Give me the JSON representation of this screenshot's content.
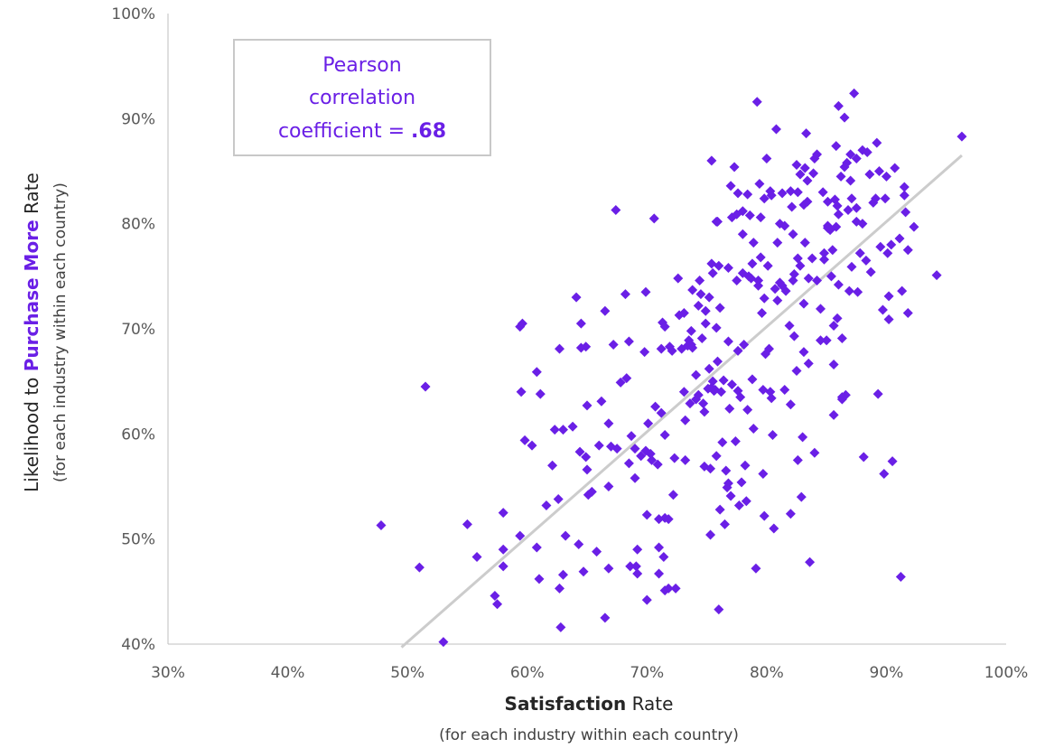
{
  "chart_data": {
    "type": "scatter",
    "xlabel_bold": "Satisfaction",
    "xlabel_rest": " Rate",
    "xlabel_sub": "(for each industry within each country)",
    "ylabel_pre": "Likelihood to ",
    "ylabel_bold": "Purchase More",
    "ylabel_rest": " Rate",
    "ylabel_sub": "(for each industry within each country)",
    "xlim": [
      30,
      100
    ],
    "ylim": [
      40,
      100
    ],
    "x_ticks": [
      "30%",
      "40%",
      "50%",
      "60%",
      "70%",
      "80%",
      "90%",
      "100%"
    ],
    "y_ticks": [
      "40%",
      "50%",
      "60%",
      "70%",
      "80%",
      "90%",
      "100%"
    ],
    "grid": false,
    "marker": "diamond",
    "colors": {
      "points": "#6a1fe6",
      "trendline": "#cccccc",
      "annotation_border": "#c8c8c8",
      "annotation_text": "#6a1fe6"
    },
    "annotation": {
      "line1": "Pearson",
      "line2": "correlation",
      "line3_prefix": "coefficient = ",
      "line3_value": ".68"
    },
    "trendline": {
      "x": [
        49.5,
        96.3
      ],
      "y": [
        39.7,
        86.5
      ]
    },
    "points": [
      [
        47.8,
        51.3
      ],
      [
        51.0,
        47.3
      ],
      [
        51.5,
        64.5
      ],
      [
        53.0,
        40.2
      ],
      [
        55.0,
        51.4
      ],
      [
        55.8,
        48.3
      ],
      [
        57.3,
        44.6
      ],
      [
        57.5,
        43.8
      ],
      [
        58.0,
        49.0
      ],
      [
        58.0,
        47.4
      ],
      [
        58.0,
        52.5
      ],
      [
        59.4,
        50.3
      ],
      [
        59.4,
        70.2
      ],
      [
        59.6,
        70.5
      ],
      [
        59.5,
        64.0
      ],
      [
        59.8,
        59.4
      ],
      [
        60.4,
        58.9
      ],
      [
        60.8,
        65.9
      ],
      [
        60.8,
        49.2
      ],
      [
        61.0,
        46.2
      ],
      [
        61.1,
        63.8
      ],
      [
        61.6,
        53.2
      ],
      [
        62.1,
        57.0
      ],
      [
        62.3,
        60.4
      ],
      [
        62.6,
        53.8
      ],
      [
        62.7,
        45.3
      ],
      [
        62.7,
        68.1
      ],
      [
        62.8,
        41.6
      ],
      [
        63.0,
        60.4
      ],
      [
        63.0,
        46.6
      ],
      [
        63.2,
        50.3
      ],
      [
        63.8,
        60.7
      ],
      [
        64.1,
        73.0
      ],
      [
        64.3,
        49.5
      ],
      [
        64.4,
        58.3
      ],
      [
        64.5,
        68.2
      ],
      [
        64.5,
        70.5
      ],
      [
        64.7,
        46.9
      ],
      [
        64.9,
        57.8
      ],
      [
        65.0,
        62.7
      ],
      [
        65.0,
        56.6
      ],
      [
        65.1,
        54.2
      ],
      [
        65.4,
        54.5
      ],
      [
        65.8,
        48.8
      ],
      [
        66.0,
        58.9
      ],
      [
        66.2,
        63.1
      ],
      [
        66.5,
        71.7
      ],
      [
        66.5,
        42.5
      ],
      [
        66.8,
        61.0
      ],
      [
        66.8,
        47.2
      ],
      [
        66.8,
        55.0
      ],
      [
        67.0,
        58.8
      ],
      [
        67.2,
        68.5
      ],
      [
        67.4,
        81.3
      ],
      [
        67.5,
        58.6
      ],
      [
        67.8,
        64.9
      ],
      [
        68.2,
        73.3
      ],
      [
        68.3,
        65.3
      ],
      [
        68.5,
        68.8
      ],
      [
        68.5,
        57.2
      ],
      [
        68.6,
        47.4
      ],
      [
        69.0,
        58.6
      ],
      [
        69.0,
        55.8
      ],
      [
        69.1,
        47.4
      ],
      [
        69.2,
        49.0
      ],
      [
        69.2,
        46.7
      ],
      [
        69.5,
        57.9
      ],
      [
        69.8,
        67.8
      ],
      [
        69.9,
        73.5
      ],
      [
        69.9,
        58.4
      ],
      [
        70.0,
        52.3
      ],
      [
        70.0,
        44.2
      ],
      [
        70.1,
        61.0
      ],
      [
        70.3,
        58.1
      ],
      [
        70.4,
        57.5
      ],
      [
        70.6,
        80.5
      ],
      [
        70.7,
        62.6
      ],
      [
        70.9,
        57.1
      ],
      [
        71.0,
        51.9
      ],
      [
        71.0,
        49.2
      ],
      [
        71.0,
        46.7
      ],
      [
        71.2,
        68.1
      ],
      [
        71.2,
        62.0
      ],
      [
        71.3,
        70.6
      ],
      [
        71.4,
        48.3
      ],
      [
        71.5,
        70.2
      ],
      [
        71.5,
        59.9
      ],
      [
        71.5,
        52.0
      ],
      [
        71.5,
        45.1
      ],
      [
        71.8,
        51.9
      ],
      [
        71.8,
        45.3
      ],
      [
        71.9,
        68.3
      ],
      [
        72.1,
        67.9
      ],
      [
        72.2,
        54.2
      ],
      [
        72.3,
        57.7
      ],
      [
        72.4,
        45.3
      ],
      [
        72.6,
        74.8
      ],
      [
        72.7,
        71.3
      ],
      [
        72.9,
        68.1
      ],
      [
        73.1,
        71.5
      ],
      [
        73.1,
        64.0
      ],
      [
        73.2,
        61.3
      ],
      [
        73.2,
        57.5
      ],
      [
        73.4,
        68.4
      ],
      [
        73.5,
        68.9
      ],
      [
        73.6,
        62.9
      ],
      [
        73.7,
        69.8
      ],
      [
        73.7,
        68.5
      ],
      [
        73.8,
        73.7
      ],
      [
        74.1,
        65.6
      ],
      [
        74.1,
        63.3
      ],
      [
        74.3,
        72.2
      ],
      [
        74.3,
        63.7
      ],
      [
        74.4,
        74.6
      ],
      [
        74.5,
        73.3
      ],
      [
        74.6,
        69.1
      ],
      [
        74.7,
        62.9
      ],
      [
        74.8,
        56.9
      ],
      [
        74.8,
        62.1
      ],
      [
        74.9,
        71.7
      ],
      [
        75.1,
        64.3
      ],
      [
        75.2,
        73.0
      ],
      [
        75.2,
        66.2
      ],
      [
        75.3,
        56.7
      ],
      [
        75.3,
        50.4
      ],
      [
        75.4,
        86.0
      ],
      [
        75.4,
        76.2
      ],
      [
        75.5,
        65.0
      ],
      [
        75.5,
        75.3
      ],
      [
        75.6,
        64.1
      ],
      [
        75.7,
        64.2
      ],
      [
        75.8,
        57.9
      ],
      [
        75.8,
        70.1
      ],
      [
        75.8,
        80.2
      ],
      [
        75.9,
        66.9
      ],
      [
        76.0,
        43.3
      ],
      [
        76.0,
        76.0
      ],
      [
        76.1,
        52.8
      ],
      [
        76.2,
        64.0
      ],
      [
        76.3,
        59.2
      ],
      [
        76.4,
        65.1
      ],
      [
        76.5,
        51.4
      ],
      [
        76.6,
        56.5
      ],
      [
        76.7,
        54.9
      ],
      [
        76.8,
        55.3
      ],
      [
        76.8,
        75.8
      ],
      [
        76.8,
        68.8
      ],
      [
        76.9,
        62.4
      ],
      [
        77.0,
        54.1
      ],
      [
        77.0,
        83.6
      ],
      [
        77.1,
        64.7
      ],
      [
        77.1,
        80.6
      ],
      [
        77.3,
        85.4
      ],
      [
        77.4,
        59.3
      ],
      [
        77.5,
        80.9
      ],
      [
        77.5,
        74.6
      ],
      [
        77.6,
        67.9
      ],
      [
        77.6,
        64.1
      ],
      [
        77.6,
        82.9
      ],
      [
        77.7,
        53.2
      ],
      [
        77.8,
        63.5
      ],
      [
        77.9,
        55.4
      ],
      [
        78.0,
        81.2
      ],
      [
        78.0,
        79.0
      ],
      [
        78.0,
        75.3
      ],
      [
        78.1,
        68.5
      ],
      [
        78.2,
        57.0
      ],
      [
        78.3,
        53.6
      ],
      [
        78.4,
        62.3
      ],
      [
        78.5,
        75.0
      ],
      [
        78.6,
        80.8
      ],
      [
        78.7,
        74.8
      ],
      [
        78.8,
        65.2
      ],
      [
        78.8,
        76.2
      ],
      [
        78.9,
        78.2
      ],
      [
        78.9,
        60.5
      ],
      [
        79.1,
        47.2
      ],
      [
        79.2,
        91.6
      ],
      [
        79.3,
        74.6
      ],
      [
        79.3,
        74.1
      ],
      [
        79.4,
        83.8
      ],
      [
        79.5,
        76.8
      ],
      [
        79.5,
        80.6
      ],
      [
        79.6,
        71.5
      ],
      [
        79.7,
        56.2
      ],
      [
        79.7,
        64.2
      ],
      [
        79.8,
        82.4
      ],
      [
        79.8,
        72.9
      ],
      [
        79.8,
        52.2
      ],
      [
        79.9,
        67.6
      ],
      [
        80.0,
        86.2
      ],
      [
        80.1,
        76.0
      ],
      [
        80.2,
        68.1
      ],
      [
        80.3,
        83.1
      ],
      [
        80.3,
        64.0
      ],
      [
        80.4,
        82.7
      ],
      [
        80.4,
        63.4
      ],
      [
        80.5,
        59.9
      ],
      [
        80.6,
        51.0
      ],
      [
        80.7,
        73.8
      ],
      [
        80.8,
        89.0
      ],
      [
        80.9,
        78.2
      ],
      [
        81.1,
        74.4
      ],
      [
        81.1,
        80.0
      ],
      [
        81.3,
        74.1
      ],
      [
        81.3,
        82.9
      ],
      [
        81.5,
        64.2
      ],
      [
        81.5,
        79.8
      ],
      [
        81.6,
        73.6
      ],
      [
        81.9,
        70.3
      ],
      [
        82.0,
        83.1
      ],
      [
        82.0,
        62.8
      ],
      [
        82.0,
        52.4
      ],
      [
        82.1,
        81.6
      ],
      [
        82.2,
        74.6
      ],
      [
        82.2,
        79.0
      ],
      [
        82.3,
        75.2
      ],
      [
        82.3,
        69.3
      ],
      [
        82.5,
        85.6
      ],
      [
        82.5,
        66.0
      ],
      [
        82.6,
        76.7
      ],
      [
        82.6,
        57.5
      ],
      [
        82.6,
        83.0
      ],
      [
        82.8,
        84.7
      ],
      [
        82.8,
        76.0
      ],
      [
        82.9,
        54.0
      ],
      [
        83.0,
        59.7
      ],
      [
        83.1,
        67.8
      ],
      [
        83.1,
        81.8
      ],
      [
        83.1,
        72.4
      ],
      [
        83.2,
        85.3
      ],
      [
        83.2,
        78.2
      ],
      [
        83.3,
        88.6
      ],
      [
        83.4,
        84.1
      ],
      [
        83.4,
        82.1
      ],
      [
        83.5,
        74.8
      ],
      [
        83.5,
        66.7
      ],
      [
        83.6,
        47.8
      ],
      [
        83.8,
        76.7
      ],
      [
        83.9,
        84.8
      ],
      [
        84.0,
        58.2
      ],
      [
        84.0,
        86.2
      ],
      [
        84.2,
        74.6
      ],
      [
        84.2,
        86.6
      ],
      [
        84.5,
        71.9
      ],
      [
        84.5,
        68.9
      ],
      [
        84.7,
        83.0
      ],
      [
        84.8,
        77.2
      ],
      [
        84.8,
        76.6
      ],
      [
        85.0,
        68.9
      ],
      [
        85.1,
        79.8
      ],
      [
        85.1,
        82.1
      ],
      [
        85.1,
        79.6
      ],
      [
        85.3,
        79.4
      ],
      [
        85.4,
        75.0
      ],
      [
        85.5,
        77.5
      ],
      [
        85.6,
        66.6
      ],
      [
        85.6,
        70.3
      ],
      [
        85.6,
        61.8
      ],
      [
        85.7,
        82.3
      ],
      [
        85.8,
        79.7
      ],
      [
        85.8,
        87.4
      ],
      [
        85.9,
        81.7
      ],
      [
        86.0,
        91.2
      ],
      [
        86.0,
        74.2
      ],
      [
        86.0,
        80.9
      ],
      [
        86.2,
        84.5
      ],
      [
        86.3,
        63.3
      ],
      [
        86.3,
        69.1
      ],
      [
        86.5,
        90.1
      ],
      [
        86.5,
        85.4
      ],
      [
        86.6,
        63.7
      ],
      [
        86.7,
        85.8
      ],
      [
        86.8,
        81.3
      ],
      [
        86.9,
        73.6
      ],
      [
        87.0,
        86.6
      ],
      [
        87.0,
        84.1
      ],
      [
        87.1,
        75.9
      ],
      [
        87.1,
        82.4
      ],
      [
        87.3,
        92.4
      ],
      [
        87.5,
        80.2
      ],
      [
        87.5,
        81.5
      ],
      [
        87.5,
        86.2
      ],
      [
        87.6,
        73.5
      ],
      [
        87.8,
        77.2
      ],
      [
        88.0,
        87.0
      ],
      [
        88.0,
        80.0
      ],
      [
        88.1,
        57.8
      ],
      [
        88.3,
        76.5
      ],
      [
        88.4,
        86.8
      ],
      [
        88.6,
        84.7
      ],
      [
        88.7,
        75.4
      ],
      [
        88.9,
        82.0
      ],
      [
        89.1,
        82.4
      ],
      [
        89.2,
        87.7
      ],
      [
        89.3,
        63.8
      ],
      [
        89.4,
        85.0
      ],
      [
        89.5,
        77.8
      ],
      [
        89.7,
        71.8
      ],
      [
        89.8,
        56.2
      ],
      [
        89.9,
        82.4
      ],
      [
        90.0,
        84.5
      ],
      [
        90.1,
        77.2
      ],
      [
        90.2,
        73.1
      ],
      [
        90.2,
        70.9
      ],
      [
        90.4,
        78.0
      ],
      [
        90.5,
        57.4
      ],
      [
        90.7,
        85.3
      ],
      [
        91.1,
        78.6
      ],
      [
        91.2,
        46.4
      ],
      [
        91.3,
        73.6
      ],
      [
        91.5,
        82.7
      ],
      [
        91.5,
        83.5
      ],
      [
        91.6,
        81.1
      ],
      [
        91.8,
        77.5
      ],
      [
        91.8,
        71.5
      ],
      [
        92.3,
        79.7
      ],
      [
        94.2,
        75.1
      ],
      [
        96.3,
        88.3
      ],
      [
        86.3,
        63.5
      ],
      [
        76.1,
        72.0
      ],
      [
        64.9,
        68.3
      ],
      [
        68.7,
        59.8
      ],
      [
        73.8,
        68.2
      ],
      [
        74.9,
        70.5
      ],
      [
        80.9,
        72.7
      ],
      [
        75.4,
        64.4
      ],
      [
        75.9,
        80.2
      ],
      [
        78.4,
        82.8
      ],
      [
        85.9,
        71.0
      ]
    ]
  }
}
